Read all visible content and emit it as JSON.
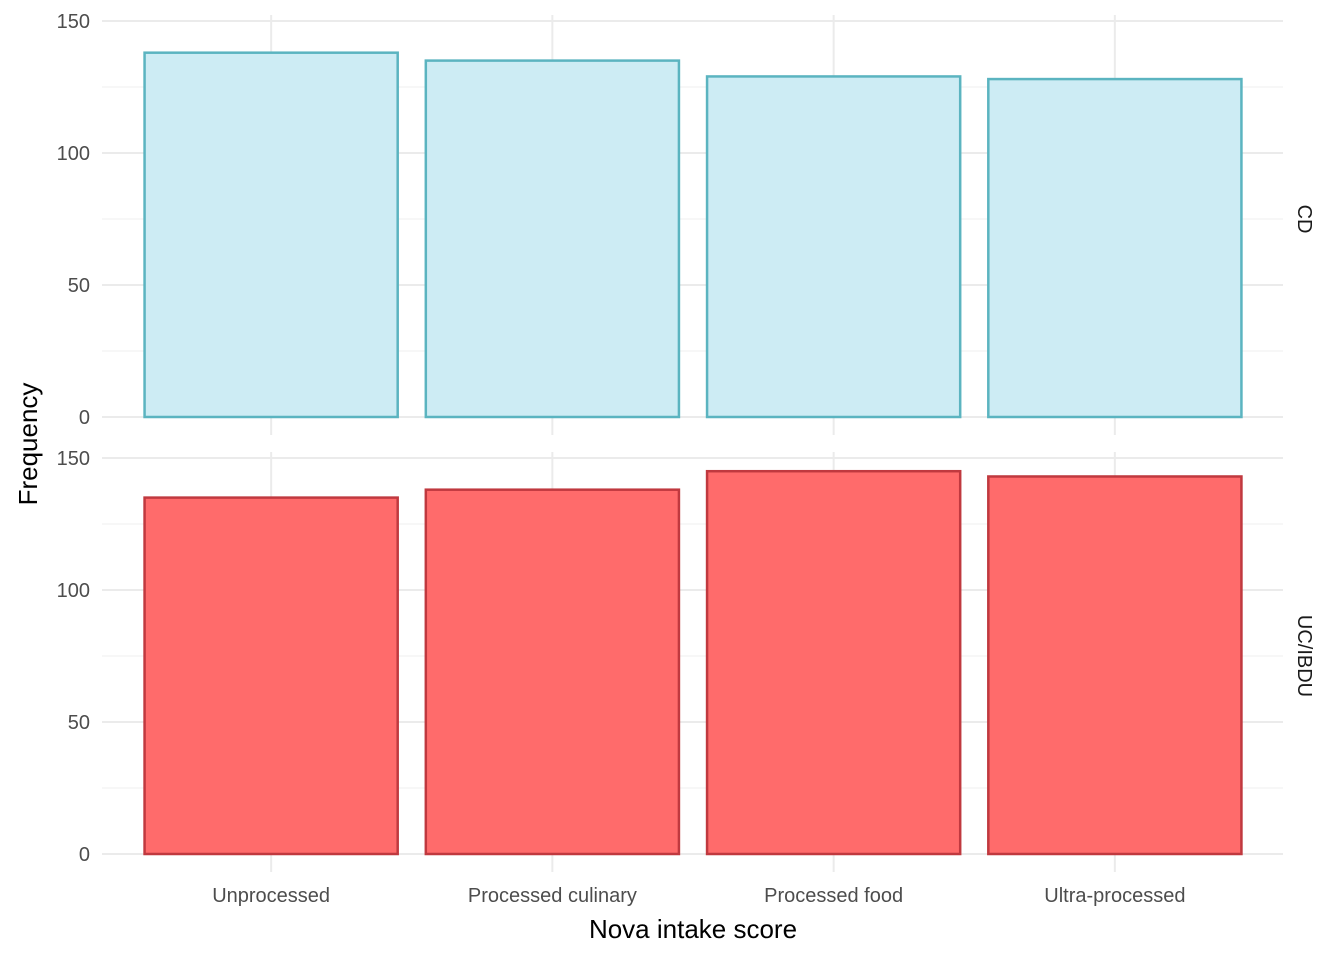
{
  "chart_data": {
    "type": "bar",
    "xlabel": "Nova intake score",
    "ylabel": "Frequency",
    "categories": [
      "Unprocessed",
      "Processed culinary",
      "Processed food",
      "Ultra-processed"
    ],
    "ylim": [
      0,
      150
    ],
    "yticks": [
      0,
      50,
      100,
      150
    ],
    "grid": true,
    "facets": [
      {
        "label": "CD",
        "values": [
          138,
          135,
          129,
          128
        ],
        "fill": "#cdecf4",
        "stroke": "#5bb4c0"
      },
      {
        "label": "UC/IBDU",
        "values": [
          135,
          138,
          145,
          143
        ],
        "fill": "#ff6b6b",
        "stroke": "#c0393f"
      }
    ]
  }
}
